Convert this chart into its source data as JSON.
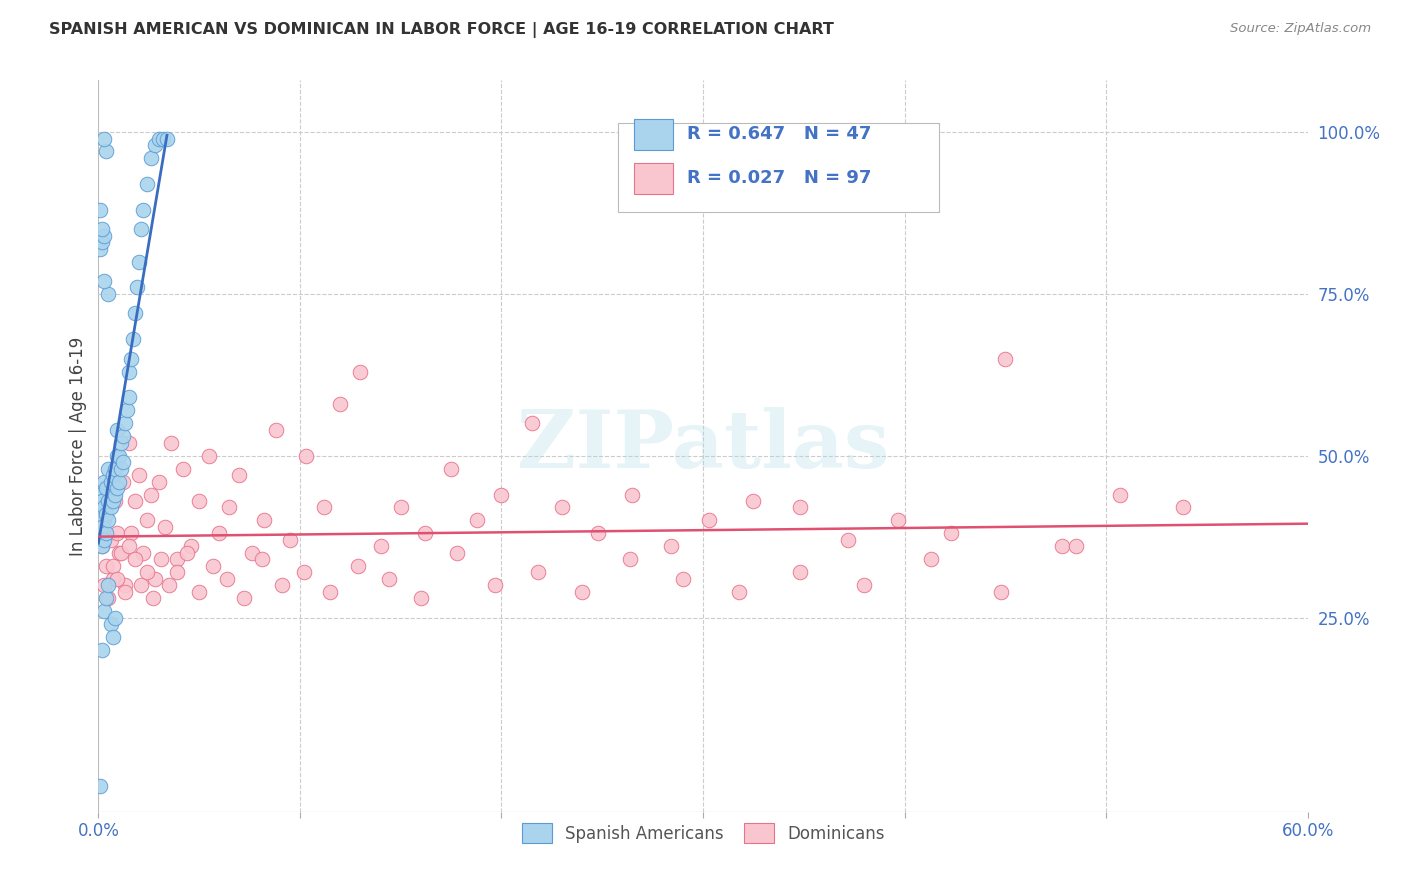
{
  "title": "SPANISH AMERICAN VS DOMINICAN IN LABOR FORCE | AGE 16-19 CORRELATION CHART",
  "source": "Source: ZipAtlas.com",
  "ylabel": "In Labor Force | Age 16-19",
  "right_ytick_vals": [
    1.0,
    0.75,
    0.5,
    0.25
  ],
  "right_ytick_labels": [
    "100.0%",
    "75.0%",
    "50.0%",
    "25.0%"
  ],
  "blue_color": "#aad4ed",
  "pink_color": "#f9c6d0",
  "blue_edge_color": "#5b9bd5",
  "pink_edge_color": "#e8728a",
  "blue_line_color": "#3a6dbf",
  "pink_line_color": "#e05070",
  "watermark": "ZIPatlas",
  "xlim": [
    0.0,
    0.6
  ],
  "ylim": [
    -0.05,
    1.08
  ],
  "blue_scatter_x": [
    0.001,
    0.001,
    0.001,
    0.002,
    0.002,
    0.002,
    0.003,
    0.003,
    0.003,
    0.004,
    0.004,
    0.004,
    0.005,
    0.005,
    0.005,
    0.006,
    0.006,
    0.007,
    0.007,
    0.008,
    0.008,
    0.009,
    0.009,
    0.009,
    0.01,
    0.01,
    0.011,
    0.011,
    0.012,
    0.012,
    0.013,
    0.014,
    0.015,
    0.015,
    0.016,
    0.017,
    0.018,
    0.019,
    0.02,
    0.021,
    0.022,
    0.024,
    0.026,
    0.028,
    0.03,
    0.032,
    0.034
  ],
  "blue_scatter_y": [
    0.38,
    0.41,
    0.44,
    0.36,
    0.39,
    0.43,
    0.37,
    0.42,
    0.46,
    0.38,
    0.41,
    0.45,
    0.4,
    0.43,
    0.48,
    0.42,
    0.46,
    0.43,
    0.47,
    0.44,
    0.48,
    0.45,
    0.5,
    0.54,
    0.46,
    0.5,
    0.48,
    0.52,
    0.49,
    0.53,
    0.55,
    0.57,
    0.59,
    0.63,
    0.65,
    0.68,
    0.72,
    0.76,
    0.8,
    0.85,
    0.88,
    0.92,
    0.96,
    0.98,
    0.99,
    0.99,
    0.99
  ],
  "blue_outlier_x": [
    0.001,
    0.002,
    0.003,
    0.004,
    0.003,
    0.002,
    0.001,
    0.005,
    0.003
  ],
  "blue_outlier_y": [
    0.82,
    0.83,
    0.84,
    0.97,
    0.99,
    0.85,
    0.88,
    0.75,
    0.77
  ],
  "blue_low_x": [
    0.001,
    0.002,
    0.003,
    0.004,
    0.005,
    0.006,
    0.007,
    0.008
  ],
  "blue_low_y": [
    -0.01,
    0.2,
    0.26,
    0.28,
    0.3,
    0.24,
    0.22,
    0.25
  ],
  "pink_scatter_x": [
    0.002,
    0.003,
    0.004,
    0.005,
    0.006,
    0.007,
    0.008,
    0.009,
    0.01,
    0.012,
    0.013,
    0.015,
    0.016,
    0.018,
    0.02,
    0.022,
    0.024,
    0.026,
    0.028,
    0.03,
    0.033,
    0.036,
    0.039,
    0.042,
    0.046,
    0.05,
    0.055,
    0.06,
    0.065,
    0.07,
    0.076,
    0.082,
    0.088,
    0.095,
    0.103,
    0.112,
    0.12,
    0.13,
    0.14,
    0.15,
    0.162,
    0.175,
    0.188,
    0.2,
    0.215,
    0.23,
    0.248,
    0.265,
    0.284,
    0.303,
    0.325,
    0.348,
    0.372,
    0.397,
    0.423,
    0.45,
    0.478,
    0.507,
    0.538,
    0.003,
    0.005,
    0.007,
    0.009,
    0.011,
    0.013,
    0.015,
    0.018,
    0.021,
    0.024,
    0.027,
    0.031,
    0.035,
    0.039,
    0.044,
    0.05,
    0.057,
    0.064,
    0.072,
    0.081,
    0.091,
    0.102,
    0.115,
    0.129,
    0.144,
    0.16,
    0.178,
    0.197,
    0.218,
    0.24,
    0.264,
    0.29,
    0.318,
    0.348,
    0.38,
    0.413,
    0.448,
    0.485
  ],
  "pink_scatter_y": [
    0.36,
    0.4,
    0.33,
    0.44,
    0.37,
    0.31,
    0.43,
    0.38,
    0.35,
    0.46,
    0.3,
    0.52,
    0.38,
    0.43,
    0.47,
    0.35,
    0.4,
    0.44,
    0.31,
    0.46,
    0.39,
    0.52,
    0.34,
    0.48,
    0.36,
    0.43,
    0.5,
    0.38,
    0.42,
    0.47,
    0.35,
    0.4,
    0.54,
    0.37,
    0.5,
    0.42,
    0.58,
    0.63,
    0.36,
    0.42,
    0.38,
    0.48,
    0.4,
    0.44,
    0.55,
    0.42,
    0.38,
    0.44,
    0.36,
    0.4,
    0.43,
    0.42,
    0.37,
    0.4,
    0.38,
    0.65,
    0.36,
    0.44,
    0.42,
    0.3,
    0.28,
    0.33,
    0.31,
    0.35,
    0.29,
    0.36,
    0.34,
    0.3,
    0.32,
    0.28,
    0.34,
    0.3,
    0.32,
    0.35,
    0.29,
    0.33,
    0.31,
    0.28,
    0.34,
    0.3,
    0.32,
    0.29,
    0.33,
    0.31,
    0.28,
    0.35,
    0.3,
    0.32,
    0.29,
    0.34,
    0.31,
    0.29,
    0.32,
    0.3,
    0.34,
    0.29,
    0.36
  ]
}
